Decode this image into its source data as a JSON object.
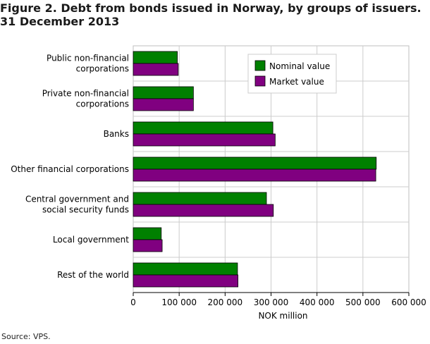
{
  "chart_data": {
    "type": "bar",
    "orientation": "horizontal",
    "title_lines": [
      "Figure 2. Debt from bonds issued in Norway, by groups of issuers.",
      "31 December 2013"
    ],
    "categories": [
      [
        "Public non-financial",
        "corporations"
      ],
      [
        "Private non-financial",
        "corporations"
      ],
      [
        "Banks"
      ],
      [
        "Other financial corporations"
      ],
      [
        "Central government and",
        "social security funds"
      ],
      [
        "Local government"
      ],
      [
        "Rest of the world"
      ]
    ],
    "series": [
      {
        "name": "Nominal value",
        "color": "#008000",
        "values": [
          96000,
          131000,
          304000,
          529000,
          290000,
          61000,
          227000
        ]
      },
      {
        "name": "Market value",
        "color": "#800080",
        "values": [
          98000,
          131000,
          309000,
          528000,
          305000,
          63000,
          228000
        ]
      }
    ],
    "xlabel": "NOK million",
    "xlim": [
      0,
      600000
    ],
    "xticks": [
      0,
      100000,
      200000,
      300000,
      400000,
      500000,
      600000
    ],
    "xtick_labels": [
      "0",
      "100 000",
      "200 000",
      "300 000",
      "400 000",
      "500 000",
      "600 000"
    ],
    "grid": true,
    "legend_position": "top-right"
  },
  "source": "Source: VPS."
}
